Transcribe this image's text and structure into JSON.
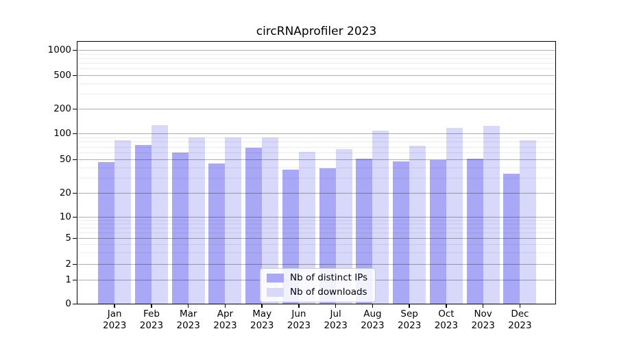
{
  "title": "circRNAprofiler 2023",
  "chart_data": {
    "type": "bar",
    "title": "circRNAprofiler 2023",
    "categories": [
      "Jan 2023",
      "Feb 2023",
      "Mar 2023",
      "Apr 2023",
      "May 2023",
      "Jun 2023",
      "Jul 2023",
      "Aug 2023",
      "Sep 2023",
      "Oct 2023",
      "Nov 2023",
      "Dec 2023"
    ],
    "series": [
      {
        "name": "Nb of distinct IPs",
        "color": "#a8a8f7",
        "values": [
          46,
          73,
          60,
          45,
          68,
          38,
          39,
          51,
          47,
          49,
          51,
          34
        ]
      },
      {
        "name": "Nb of downloads",
        "color": "#d8d8fa",
        "values": [
          83,
          126,
          90,
          90,
          90,
          61,
          66,
          107,
          72,
          117,
          124,
          83
        ]
      }
    ],
    "xlabel": "",
    "ylabel": "",
    "yscale": "symlog",
    "yticks": [
      0,
      1,
      2,
      5,
      10,
      20,
      50,
      100,
      200,
      500,
      1000
    ],
    "ylim": [
      0,
      1250
    ],
    "grid": "horizontal major and log-minor lines drawn over bars",
    "legend_position": "lower center"
  },
  "colors": {
    "background": "#ffffff",
    "spine": "#000000",
    "grid_major": "#b0b0b0",
    "grid_minor": "#ececec",
    "text": "#000000",
    "legend_border": "#cccccc",
    "legend_background": "rgba(255,255,255,0.85)"
  }
}
